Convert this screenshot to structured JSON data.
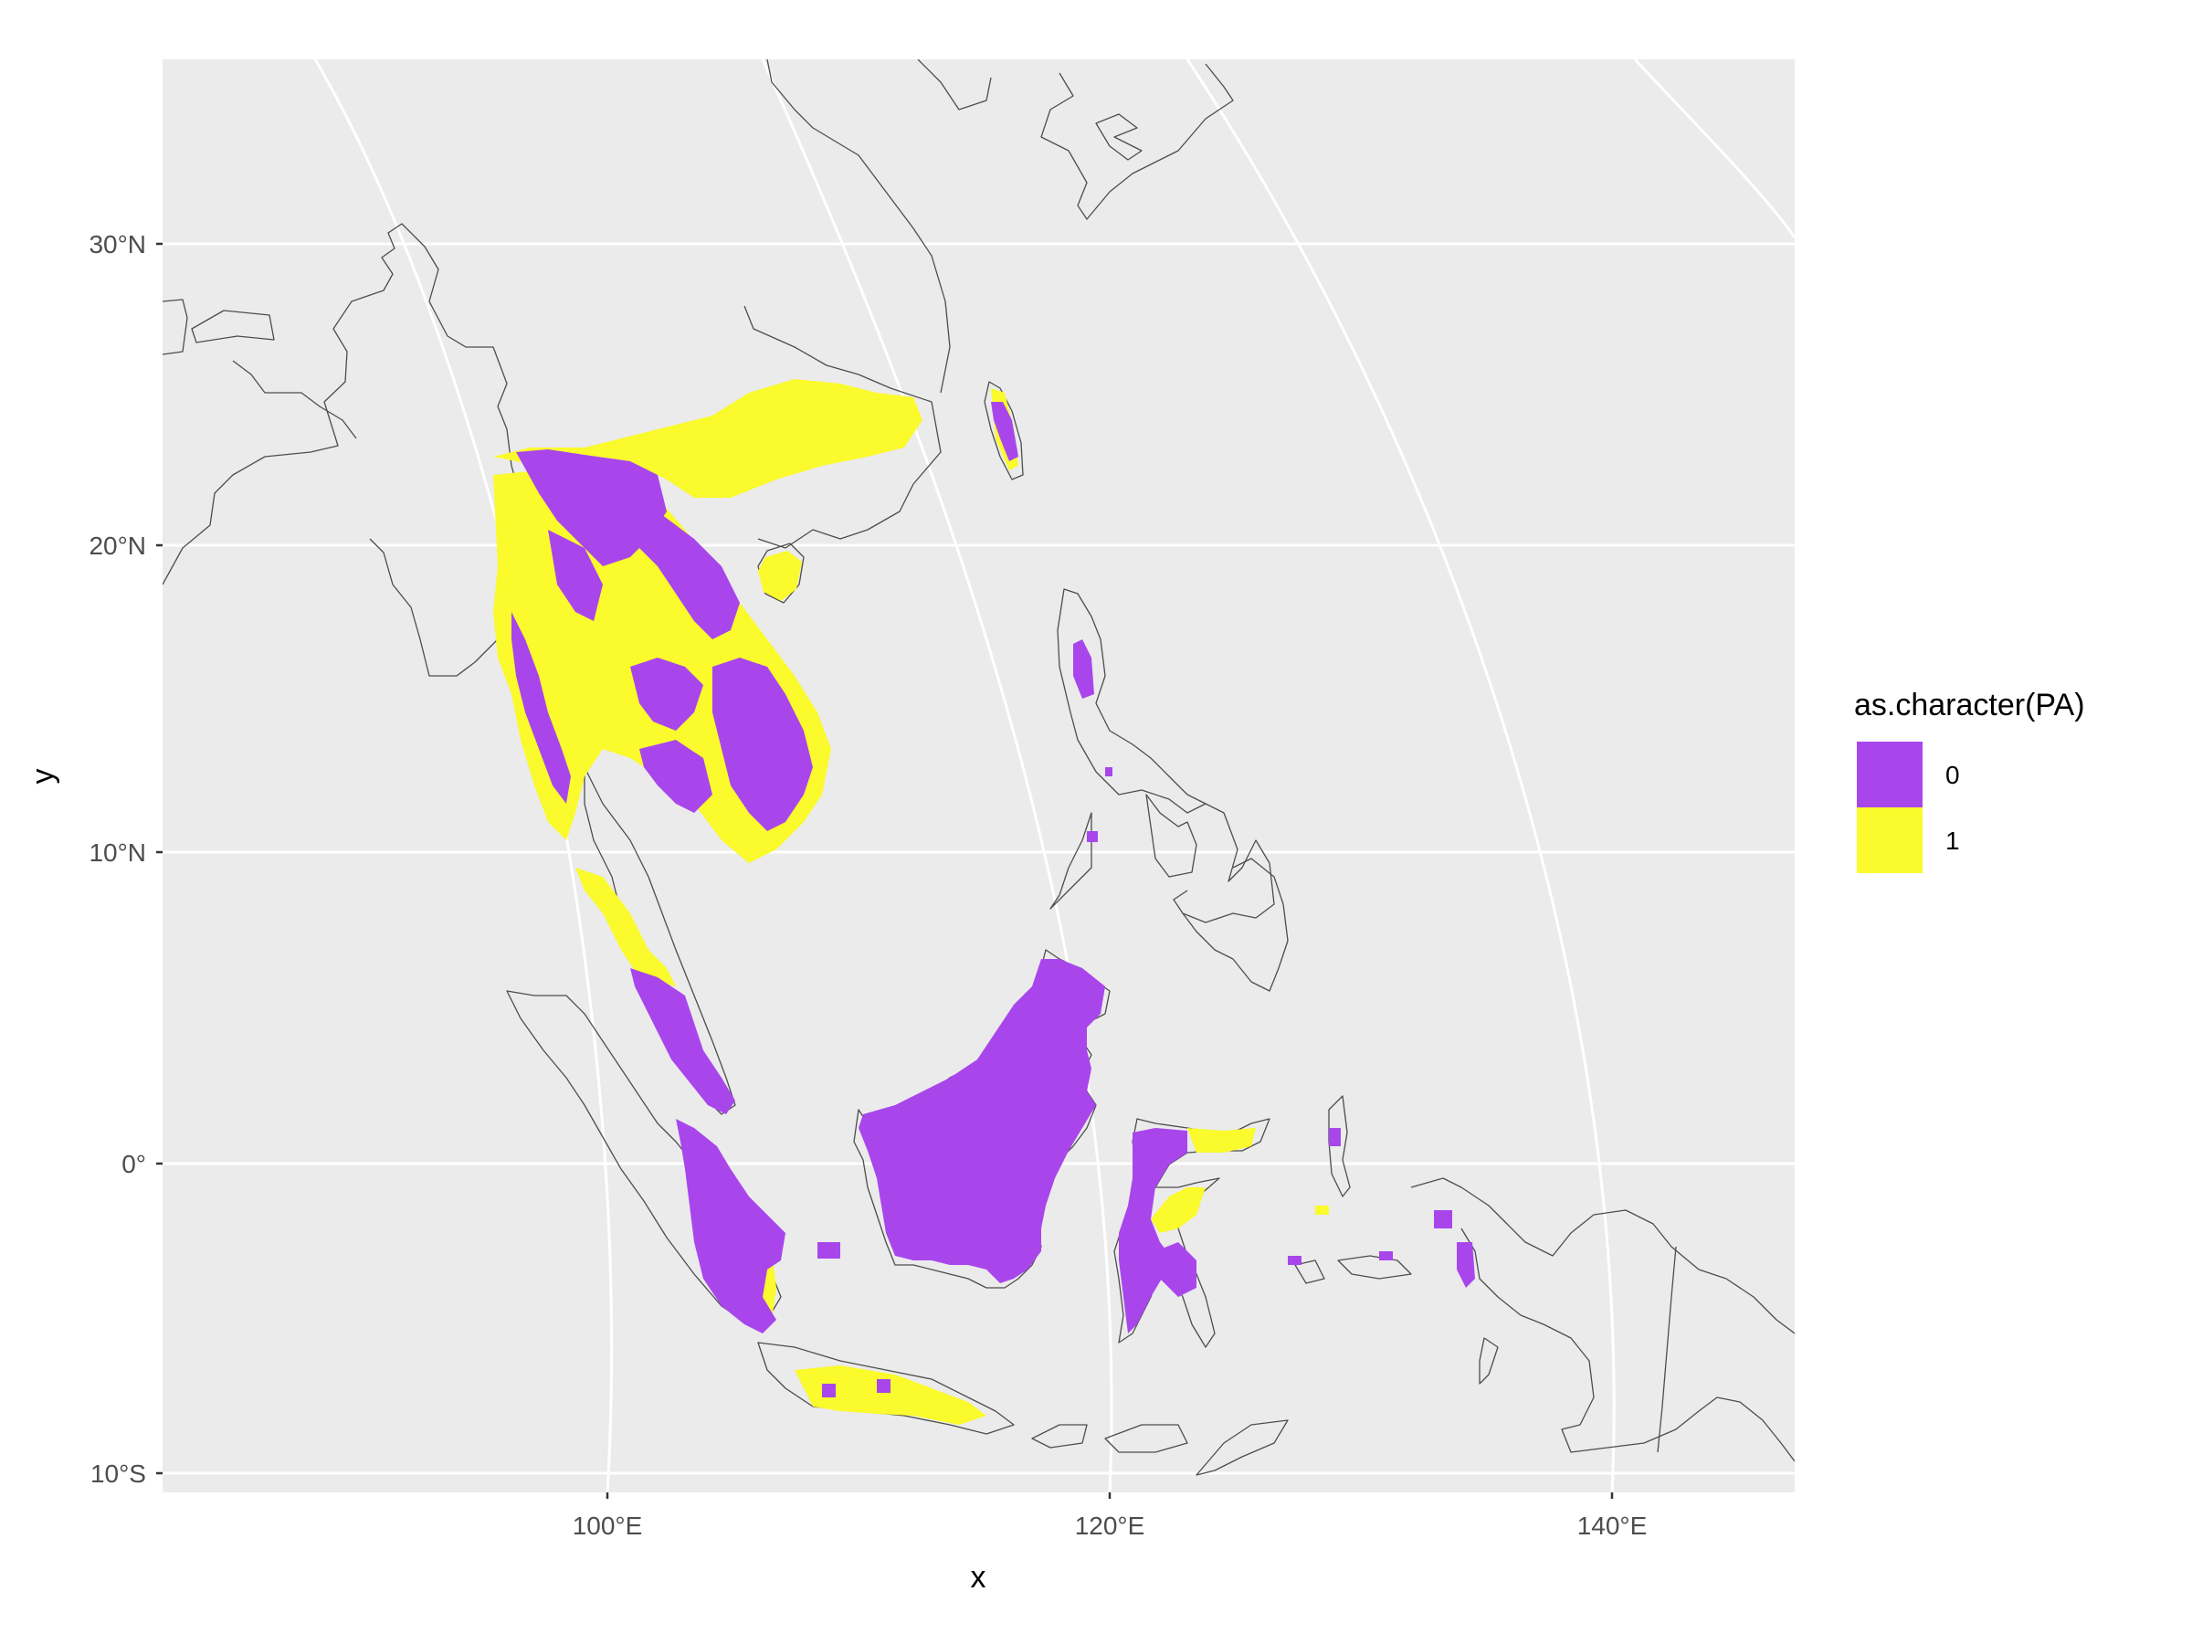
{
  "chart_data": {
    "type": "map",
    "xlabel": "x",
    "ylabel": "y",
    "x_ticks": [
      {
        "value": 100,
        "label": "100°E"
      },
      {
        "value": 120,
        "label": "120°E"
      },
      {
        "value": 140,
        "label": "140°E"
      }
    ],
    "y_ticks": [
      {
        "value": 30,
        "label": "30°N"
      },
      {
        "value": 20,
        "label": "20°N"
      },
      {
        "value": 10,
        "label": "10°N"
      },
      {
        "value": 0,
        "label": "0°"
      },
      {
        "value": -10,
        "label": "10°S"
      }
    ],
    "xlim": [
      82.5,
      147.5
    ],
    "ylim": [
      -10.6,
      36
    ],
    "grid": true,
    "legend": {
      "title": "as.character(PA)",
      "placement": "right",
      "entries": [
        {
          "label": "0",
          "color": "#a846ec"
        },
        {
          "label": "1",
          "color": "#fafa2c"
        }
      ]
    },
    "series": [
      {
        "name": "0",
        "color": "#a846ec",
        "regions": [
          "Myanmar",
          "Thailand",
          "Laos",
          "Vietnam",
          "Cambodia",
          "Taiwan",
          "Luzon",
          "Malay Peninsula",
          "Sumatra",
          "Borneo",
          "Sulawesi",
          "Maluku",
          "Java"
        ]
      },
      {
        "name": "1",
        "color": "#fafa2c",
        "regions": [
          "South China",
          "Hainan",
          "Thailand",
          "Laos",
          "Vietnam",
          "Cambodia",
          "Malay Peninsula",
          "Sumatra",
          "Borneo",
          "Sulawesi",
          "Java"
        ]
      }
    ]
  },
  "colors": {
    "panel_background": "#ebebeb",
    "grid_line": "#ffffff",
    "coastline": "#4d4d4d"
  }
}
